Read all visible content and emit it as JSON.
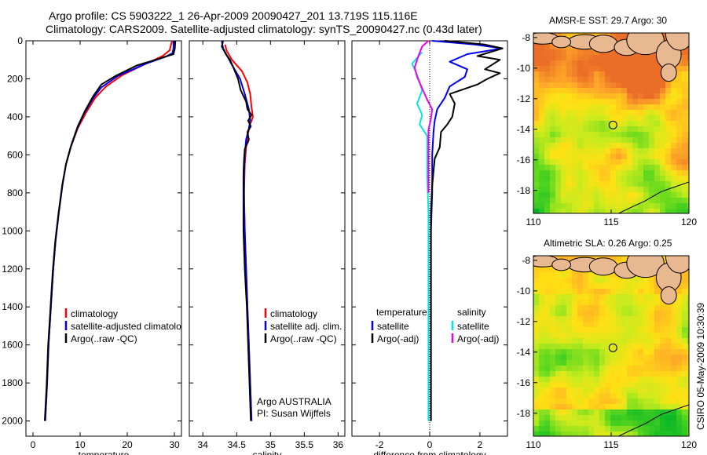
{
  "figure": {
    "title_line1": "Argo profile: CS 5903222_1 26-Apr-2009 20090427_201 13.719S 115.116E",
    "title_line2": "Climatology: CARS2009. Satellite-adjusted climatology: synTS_20090427.nc (0.43d later)",
    "footer": "CSIRO 05-May-2009 10:30:39",
    "colors": {
      "climatology": "#ff0000",
      "satellite": "#0000ee",
      "argo": "#000000",
      "cyan": "#00e5e5",
      "magenta": "#ee00ee"
    }
  },
  "chart_data": [
    {
      "type": "line",
      "id": "temperature",
      "xlabel": "temperature",
      "ylabel": "",
      "xlim": [
        -1.5,
        31.5
      ],
      "ylim": [
        2080,
        0
      ],
      "xticks": [
        0,
        10,
        20,
        30
      ],
      "xticklabels": [
        "0",
        "10",
        "20",
        "30"
      ],
      "yticks": [
        0,
        200,
        400,
        600,
        800,
        1000,
        1200,
        1400,
        1600,
        1800,
        2000
      ],
      "yticklabels": [
        "0",
        "200",
        "400",
        "600",
        "800",
        "1000",
        "1200",
        "1400",
        "1600",
        "1800",
        "2000"
      ],
      "series": [
        {
          "name": "climatology",
          "color": "red",
          "points": [
            [
              29.5,
              0
            ],
            [
              29.3,
              20
            ],
            [
              29,
              50
            ],
            [
              27.5,
              80
            ],
            [
              24,
              120
            ],
            [
              19,
              180
            ],
            [
              15.5,
              240
            ],
            [
              13.2,
              300
            ],
            [
              11.2,
              380
            ],
            [
              9.5,
              460
            ],
            [
              8,
              560
            ],
            [
              7,
              650
            ],
            [
              6.3,
              750
            ],
            [
              5.5,
              900
            ],
            [
              4.8,
              1050
            ],
            [
              4.3,
              1200
            ],
            [
              3.8,
              1400
            ],
            [
              3.3,
              1600
            ],
            [
              3,
              1800
            ],
            [
              2.6,
              2000
            ]
          ]
        },
        {
          "name": "satellite-adjusted climatology",
          "color": "blue",
          "points": [
            [
              29.8,
              0
            ],
            [
              29.8,
              40
            ],
            [
              29.6,
              65
            ],
            [
              28,
              85
            ],
            [
              24,
              120
            ],
            [
              18,
              185
            ],
            [
              14.5,
              245
            ],
            [
              12.8,
              300
            ],
            [
              10.9,
              380
            ],
            [
              9.4,
              460
            ],
            [
              8,
              560
            ],
            [
              7,
              650
            ],
            [
              6.3,
              750
            ],
            [
              5.5,
              900
            ],
            [
              4.8,
              1050
            ],
            [
              4.3,
              1200
            ],
            [
              3.8,
              1400
            ],
            [
              3.3,
              1600
            ],
            [
              3,
              1800
            ],
            [
              2.6,
              2000
            ]
          ]
        },
        {
          "name": "Argo(..raw -QC)",
          "color": "black",
          "points": [
            [
              30.2,
              0
            ],
            [
              30.1,
              40
            ],
            [
              29.8,
              70
            ],
            [
              26,
              100
            ],
            [
              22,
              130
            ],
            [
              17.5,
              185
            ],
            [
              14.5,
              230
            ],
            [
              12.8,
              290
            ],
            [
              11,
              370
            ],
            [
              9.5,
              450
            ],
            [
              8.1,
              550
            ],
            [
              7,
              650
            ],
            [
              6.2,
              760
            ],
            [
              5.4,
              910
            ],
            [
              4.7,
              1060
            ],
            [
              4.2,
              1210
            ],
            [
              3.7,
              1410
            ],
            [
              3.2,
              1610
            ],
            [
              2.9,
              1810
            ],
            [
              2.5,
              2000
            ]
          ]
        }
      ],
      "legend": [
        "climatology",
        "satellite-adjusted climatology",
        "Argo(..raw -QC)"
      ],
      "legend_position": "lower-center"
    },
    {
      "type": "line",
      "id": "salinity",
      "xlabel": "salinity",
      "xlim": [
        33.8,
        36.1
      ],
      "ylim": [
        2080,
        0
      ],
      "xticks": [
        34,
        34.5,
        35,
        35.5,
        36
      ],
      "xticklabels": [
        "34",
        "34.5",
        "35",
        "35.5",
        "36"
      ],
      "series": [
        {
          "name": "climatology",
          "color": "red",
          "points": [
            [
              34.33,
              20
            ],
            [
              34.35,
              50
            ],
            [
              34.43,
              100
            ],
            [
              34.58,
              160
            ],
            [
              34.66,
              220
            ],
            [
              34.7,
              280
            ],
            [
              34.72,
              350
            ],
            [
              34.74,
              400
            ],
            [
              34.7,
              440
            ],
            [
              34.66,
              500
            ],
            [
              34.64,
              560
            ],
            [
              34.62,
              650
            ],
            [
              34.61,
              800
            ],
            [
              34.62,
              1000
            ],
            [
              34.64,
              1200
            ],
            [
              34.66,
              1400
            ],
            [
              34.68,
              1600
            ],
            [
              34.7,
              1800
            ],
            [
              34.72,
              2000
            ]
          ]
        },
        {
          "name": "satellite adj. clim.",
          "color": "blue",
          "points": [
            [
              34.28,
              0
            ],
            [
              34.3,
              40
            ],
            [
              34.36,
              80
            ],
            [
              34.42,
              120
            ],
            [
              34.55,
              200
            ],
            [
              34.62,
              280
            ],
            [
              34.68,
              360
            ],
            [
              34.7,
              420
            ],
            [
              34.68,
              460
            ],
            [
              34.64,
              520
            ],
            [
              34.62,
              600
            ],
            [
              34.61,
              700
            ],
            [
              34.61,
              850
            ],
            [
              34.62,
              1000
            ],
            [
              34.64,
              1200
            ],
            [
              34.66,
              1400
            ],
            [
              34.68,
              1600
            ],
            [
              34.7,
              1800
            ],
            [
              34.72,
              2000
            ]
          ]
        },
        {
          "name": "Argo(..raw -QC)",
          "color": "black",
          "points": [
            [
              34.3,
              0
            ],
            [
              34.28,
              30
            ],
            [
              34.34,
              70
            ],
            [
              34.4,
              100
            ],
            [
              34.45,
              140
            ],
            [
              34.52,
              200
            ],
            [
              34.56,
              260
            ],
            [
              34.64,
              320
            ],
            [
              34.66,
              360
            ],
            [
              34.72,
              390
            ],
            [
              34.67,
              420
            ],
            [
              34.71,
              450
            ],
            [
              34.66,
              480
            ],
            [
              34.68,
              520
            ],
            [
              34.62,
              570
            ],
            [
              34.61,
              620
            ],
            [
              34.6,
              700
            ],
            [
              34.6,
              800
            ],
            [
              34.6,
              1000
            ],
            [
              34.62,
              1200
            ],
            [
              34.65,
              1400
            ],
            [
              34.67,
              1600
            ],
            [
              34.69,
              1800
            ],
            [
              34.71,
              2000
            ]
          ]
        }
      ],
      "legend": [
        "climatology",
        "satellite adj. clim.",
        "Argo(..raw -QC)"
      ],
      "legend_position": "lower-center",
      "annotation_lines": [
        "Argo AUSTRALIA",
        "PI: Susan Wijffels"
      ]
    },
    {
      "type": "line",
      "id": "difference",
      "xlabel": "difference from climatology",
      "xlim": [
        -3.1,
        3.1
      ],
      "ylim": [
        2080,
        0
      ],
      "xticks": [
        -2,
        0,
        2
      ],
      "xticklabels": [
        "-2",
        "0",
        "2"
      ],
      "zero_line": true,
      "series": [
        {
          "name": "temperature satellite",
          "color": "blue",
          "points": [
            [
              0.1,
              0
            ],
            [
              1.8,
              20
            ],
            [
              2.9,
              40
            ],
            [
              1.5,
              70
            ],
            [
              0.8,
              110
            ],
            [
              1.5,
              150
            ],
            [
              1.4,
              190
            ],
            [
              0.8,
              240
            ],
            [
              0.6,
              300
            ],
            [
              0.3,
              360
            ],
            [
              0.2,
              420
            ],
            [
              0.15,
              480
            ],
            [
              0.1,
              600
            ],
            [
              0.1,
              800
            ],
            [
              0.05,
              1000
            ],
            [
              0.05,
              1200
            ],
            [
              0.05,
              1400
            ],
            [
              0.05,
              1600
            ],
            [
              0.05,
              1800
            ],
            [
              0.05,
              2000
            ]
          ]
        },
        {
          "name": "temperature Argo(-adj)",
          "color": "black",
          "points": [
            [
              0.6,
              0
            ],
            [
              2.2,
              20
            ],
            [
              2.9,
              40
            ],
            [
              1.9,
              80
            ],
            [
              2.8,
              100
            ],
            [
              2.2,
              150
            ],
            [
              2.8,
              170
            ],
            [
              2.3,
              200
            ],
            [
              1.9,
              230
            ],
            [
              0.8,
              280
            ],
            [
              1,
              330
            ],
            [
              0.9,
              400
            ],
            [
              0.7,
              440
            ],
            [
              0.45,
              480
            ],
            [
              0.4,
              560
            ],
            [
              0.2,
              620
            ],
            [
              0.1,
              760
            ],
            [
              0.05,
              900
            ],
            [
              0.05,
              1200
            ],
            [
              0.05,
              1500
            ],
            [
              0.05,
              1800
            ],
            [
              0.05,
              2000
            ]
          ]
        },
        {
          "name": "salinity satellite",
          "color": "cyan",
          "points": [
            [
              -0.3,
              60
            ],
            [
              -0.7,
              120
            ],
            [
              -0.5,
              180
            ],
            [
              -0.3,
              260
            ],
            [
              -0.5,
              330
            ],
            [
              -0.3,
              390
            ],
            [
              -0.4,
              440
            ],
            [
              -0.1,
              500
            ],
            [
              -0.1,
              700
            ],
            [
              -0.05,
              900
            ],
            [
              -0.05,
              1200
            ],
            [
              -0.05,
              1500
            ],
            [
              -0.05,
              1800
            ],
            [
              -0.05,
              2000
            ]
          ]
        },
        {
          "name": "salinity Argo(-adj)",
          "color": "magenta",
          "points": [
            [
              -0.05,
              0
            ],
            [
              -0.3,
              30
            ],
            [
              -0.45,
              80
            ],
            [
              -0.6,
              140
            ],
            [
              -0.5,
              190
            ],
            [
              -0.3,
              250
            ],
            [
              -0.1,
              310
            ],
            [
              0.1,
              360
            ],
            [
              0.05,
              410
            ],
            [
              -0.05,
              470
            ],
            [
              -0.05,
              600
            ],
            [
              -0.05,
              800
            ]
          ]
        }
      ],
      "legend_temperature": {
        "heading": "temperature",
        "entries": [
          "satellite",
          "Argo(-adj)"
        ]
      },
      "legend_salinity": {
        "heading": "salinity",
        "entries": [
          "satellite",
          "Argo(-adj)"
        ]
      }
    },
    {
      "type": "heatmap",
      "id": "sst_map",
      "title": "AMSR-E SST: 29.7 Argo: 30",
      "xlim": [
        110,
        120
      ],
      "ylim": [
        -7.7,
        -19.5
      ],
      "xticks": [
        110,
        115,
        120
      ],
      "xticklabels": [
        "110",
        "115",
        "120"
      ],
      "yticks": [
        -8,
        -10,
        -12,
        -14,
        -16,
        -18
      ],
      "yticklabels": [
        "-8",
        "-10",
        "-12",
        "-14",
        "-16",
        "-18"
      ],
      "marker": {
        "lon": 115.116,
        "lat": -13.719
      },
      "value_range": [
        27,
        31
      ],
      "field_palette": "green-yellow-orange"
    },
    {
      "type": "heatmap",
      "id": "sla_map",
      "title": "Altimetric SLA: 0.26 Argo: 0.25",
      "xlim": [
        110,
        120
      ],
      "ylim": [
        -7.7,
        -19.5
      ],
      "xticks": [
        110,
        115,
        120
      ],
      "xticklabels": [
        "110",
        "115",
        "120"
      ],
      "yticks": [
        -8,
        -10,
        -12,
        -14,
        -16,
        -18
      ],
      "yticklabels": [
        "-8",
        "-10",
        "-12",
        "-14",
        "-16",
        "-18"
      ],
      "marker": {
        "lon": 115.116,
        "lat": -13.719
      },
      "value_range": [
        0.1,
        0.4
      ],
      "field_palette": "green-yellow-orange"
    }
  ]
}
